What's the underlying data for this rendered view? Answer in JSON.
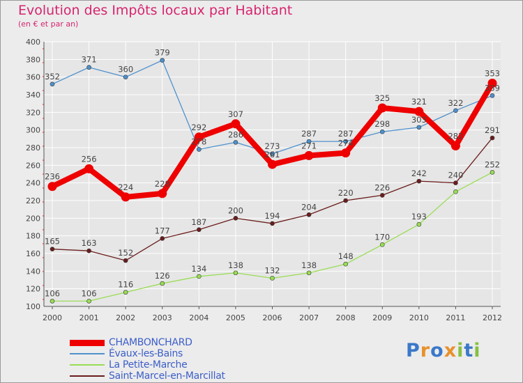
{
  "title": "Evolution des Impôts locaux par Habitant",
  "subtitle": "(en € et par an)",
  "colors": {
    "title": "#d6246e",
    "legend_text": "#3c5ec8",
    "axis": "#555555",
    "grid": "#ffffff",
    "label": "#444444"
  },
  "logo": {
    "text": "Proxiti",
    "letters": [
      {
        "ch": "P",
        "color": "#3a78c9"
      },
      {
        "ch": "r",
        "color": "#e8912a"
      },
      {
        "ch": "o",
        "color": "#3a78c9"
      },
      {
        "ch": "x",
        "color": "#e8912a"
      },
      {
        "ch": "i",
        "color": "#86c043"
      },
      {
        "ch": "t",
        "color": "#3a78c9"
      },
      {
        "ch": "i",
        "color": "#86c043"
      }
    ]
  },
  "chart_data": {
    "type": "line",
    "title": "Evolution des Impôts locaux par Habitant",
    "subtitle": "(en € et par an)",
    "xlabel": "",
    "ylabel": "",
    "x": [
      "2000",
      "2001",
      "2002",
      "2003",
      "2004",
      "2005",
      "2006",
      "2007",
      "2008",
      "2009",
      "2010",
      "2011",
      "2012"
    ],
    "ylim": [
      100,
      400
    ],
    "yticks": [
      100,
      120,
      140,
      160,
      180,
      200,
      220,
      240,
      260,
      280,
      300,
      320,
      340,
      360,
      380,
      400
    ],
    "grid": true,
    "legend_position": "bottom-left",
    "series": [
      {
        "name": "CHAMBONCHARD",
        "color": "#ee0000",
        "thick": true,
        "values": [
          236,
          256,
          224,
          228,
          292,
          307,
          261,
          271,
          274,
          325,
          321,
          282,
          353
        ],
        "labels": [
          "236",
          "256",
          "224",
          "228",
          "292",
          "307",
          "261",
          "271",
          "274",
          "325",
          "321",
          "282",
          "353"
        ]
      },
      {
        "name": "Évaux-les-Bains",
        "color": "#4f91cd",
        "thick": false,
        "values": [
          352,
          371,
          360,
          379,
          278,
          286,
          273,
          287,
          287,
          298,
          303,
          322,
          339
        ],
        "labels": [
          "352",
          "371",
          "360",
          "379",
          "278",
          "286",
          "273",
          "287",
          "287",
          "298",
          "303",
          "322",
          "339"
        ]
      },
      {
        "name": "La Petite-Marche",
        "color": "#99dd55",
        "thick": false,
        "values": [
          106,
          106,
          116,
          126,
          134,
          138,
          132,
          138,
          148,
          170,
          193,
          230,
          252
        ],
        "labels": [
          "106",
          "106",
          "116",
          "126",
          "134",
          "138",
          "132",
          "138",
          "148",
          "170",
          "193",
          "",
          "252"
        ]
      },
      {
        "name": "Saint-Marcel-en-Marcillat",
        "color": "#6b1d1d",
        "thick": false,
        "values": [
          165,
          163,
          152,
          177,
          187,
          200,
          194,
          204,
          220,
          226,
          242,
          240,
          291
        ],
        "labels": [
          "165",
          "163",
          "152",
          "177",
          "187",
          "200",
          "194",
          "204",
          "220",
          "226",
          "242",
          "240",
          "291"
        ]
      }
    ]
  }
}
